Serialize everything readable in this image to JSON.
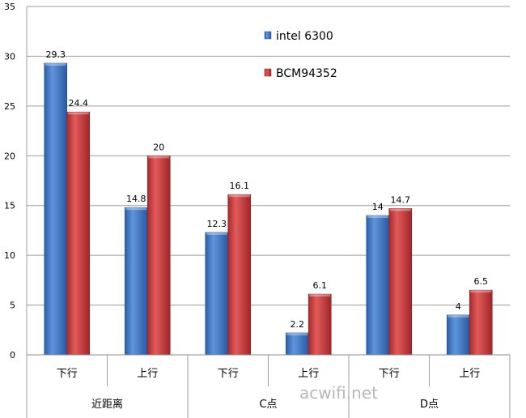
{
  "chart_data": {
    "type": "bar",
    "title": "",
    "xlabel": "",
    "ylabel": "",
    "ylim": [
      0,
      35
    ],
    "yticks": [
      "0",
      "5",
      "10",
      "15",
      "20",
      "25",
      "30",
      "35"
    ],
    "grid": true,
    "legend_position": "top-right",
    "categories": [
      "下行",
      "上行",
      "下行",
      "上行",
      "下行",
      "上行"
    ],
    "groups": [
      "近距离",
      "C点",
      "D点"
    ],
    "series": [
      {
        "name": "intel 6300",
        "color": "#3f77c4",
        "values": [
          29.3,
          14.8,
          12.3,
          2.2,
          14,
          4
        ]
      },
      {
        "name": "BCM94352",
        "color": "#c8383a",
        "values": [
          24.4,
          20,
          16.1,
          6.1,
          14.7,
          6.5
        ]
      }
    ],
    "data_labels": [
      [
        "29.3",
        "14.8",
        "12.3",
        "2.2",
        "14",
        "4"
      ],
      [
        "24.4",
        "20",
        "16.1",
        "6.1",
        "14.7",
        "6.5"
      ]
    ]
  },
  "watermark": "acwifi.net"
}
